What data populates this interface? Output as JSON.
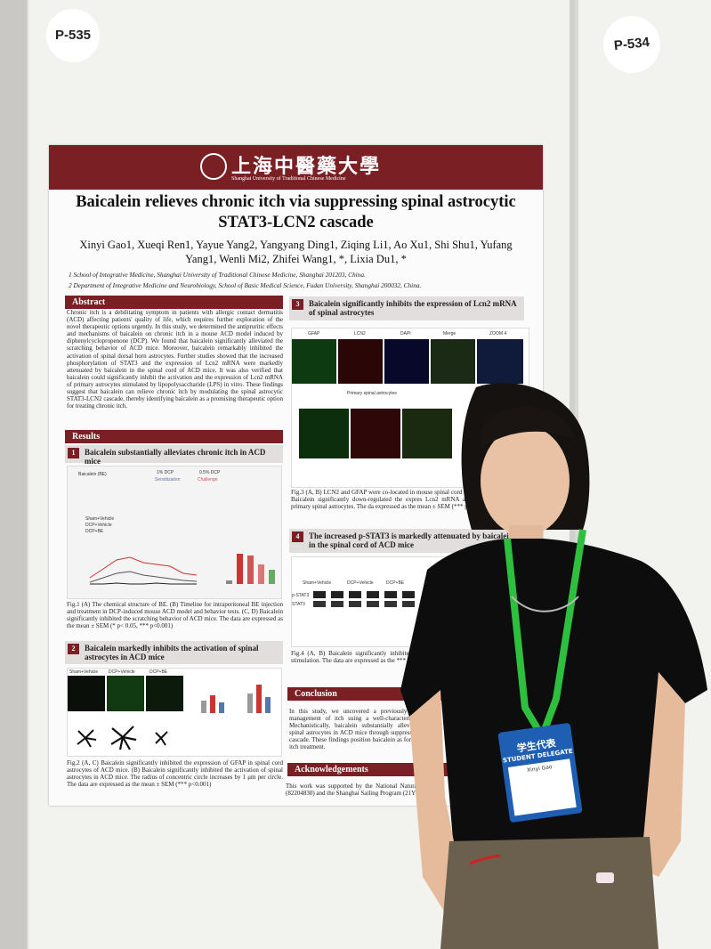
{
  "board": {
    "left_label": "P-535",
    "right_label": "P-534"
  },
  "poster": {
    "university": "上海中醫藥大學",
    "university_en": "Shanghai University of Traditional Chinese Medicine",
    "title": "Baicalein relieves chronic itch via suppressing spinal astrocytic STAT3-LCN2 cascade",
    "authors": "Xinyi Gao1, Xueqi Ren1, Yayue Yang2, Yangyang Ding1, Ziqing Li1, Ao Xu1, Shi Shu1, Yufang Yang1, Wenli Mi2, Zhifei Wang1, *, Lixia Du1, *",
    "affiliations": [
      "1 School of Integrative Medicine, Shanghai University of Traditional Chinese Medicine, Shanghai 201203, China.",
      "2 Department of Integrative Medicine and Neurobiology, School of Basic Medical Science, Fudan University, Shanghai 200032, China."
    ],
    "abstract": {
      "heading": "Abstract",
      "text": "Chronic itch is a debilitating symptom in patients with allergic contact dermatitis (ACD) affecting patients' quality of life, which requires further exploration of the novel therapeutic options urgently. In this study, we determined the antipruritic effects and mechanisms of baicalein on chronic itch in a mouse ACD model induced by diphenylcyclopropenone (DCP). We found that baicalein significantly alleviated the scratching behavior of ACD mice. Moreover, baicalein remarkably inhibited the activation of spinal dorsal horn astrocytes. Further studies showed that the increased phosphorylation of STAT3 and the expression of Lcn2 mRNA were markedly attenuated by baicalein in the spinal cord of ACD mice. It was also verified that baicalein could significantly inhibit the activation and the expression of Lcn2 mRNA of primary astrocytes stimulated by lipopolysaccharide (LPS) in vitro. These findings suggest that baicalein can relieve chronic itch by modulating the spinal astrocytic STAT3-LCN2 cascade, thereby identifying baicalein as a promising therapeutic option for treating chronic itch."
    },
    "results_heading": "Results",
    "sections": [
      {
        "number": "1",
        "heading": "Baicalein substantially alleviates chronic itch in ACD mice",
        "figure_labels": [
          "Baicalein (BE)",
          "1% DCP",
          "0.5% DCP",
          "Sensitization",
          "Challenge",
          "Sham+Vehicle",
          "DCP+Vehicle",
          "DCP+BE"
        ],
        "caption": "Fig.1 (A) The chemical structure of BE. (B) Timeline for intraperitoneal BE injection and treatment in DCP-induced mouse ACD model and behavior tests. (C, D) Baicalein significantly inhibited the scratching behavior of ACD mice. The data are expressed as the mean ± SEM (* p< 0.05, *** p<0.001)"
      },
      {
        "number": "2",
        "heading": "Baicalein markedly inhibits the activation of spinal astrocytes in ACD mice",
        "figure_labels": [
          "Sham+Vehicle",
          "DCP+Vehicle",
          "DCP+BE"
        ],
        "caption": "Fig.2 (A, C) Baicalein significantly inhibited the expression of GFAP in spinal cord astrocytes of ACD mice. (B) Baicalein significantly inhibited the activation of spinal astrocytes in ACD mice. The radius of concentric circle increases by 1 μm per circle. The data are expressed as the mean ± SEM (*** p<0.001)"
      },
      {
        "number": "3",
        "heading": "Baicalein significantly inhibits the expression of Lcn2 mRNA of spinal astrocytes",
        "figure_labels": [
          "GFAP",
          "LCN2",
          "DAPI",
          "Merge",
          "ZOOM 4",
          "Primary spinal astrocytes"
        ],
        "caption": "Fig.3 (A, B) LCN2 and GFAP were co-located in mouse spinal cord and spinal astrocytes. (C) Baicalein significantly down-regulated the expres Lcn2 mRNA after LPS stimulation in primary spinal astrocytes. The da expressed as the mean ± SEM (*** p<0.001)"
      },
      {
        "number": "4",
        "heading": "The increased p-STAT3 is markedly attenuated by baicalein in the spinal cord of ACD mice",
        "figure_labels": [
          "Sham+Vehicle",
          "DCP+Vehicle",
          "DCP+BE",
          "p-STAT3",
          "STAT3"
        ],
        "caption": "Fig.4 (A, B) Baicalein significantly inhibited AG490 significantly down-regulated the e stimulation. The data are expressed as the *** p<0.01)"
      }
    ],
    "conclusion": {
      "heading": "Conclusion",
      "text": "In this study, we uncovered a previously unrecog management of itch using a well-characterized DC Mechanistically, baicalein substantially alleviated of spinal astrocytes in ACD mice through suppressi LCN2 cascade. These findings position baicalein as for chronic itch treatment."
    },
    "acknowledgements": {
      "heading": "Acknowledgements",
      "text": "This work was supported by the National Natural Sc (82204830) and the Shanghai Sailing Program (21YF14"
    }
  },
  "badge": {
    "title": "学生代表",
    "subtitle": "STUDENT DELEGATE",
    "name": "Xinyi Gao"
  }
}
